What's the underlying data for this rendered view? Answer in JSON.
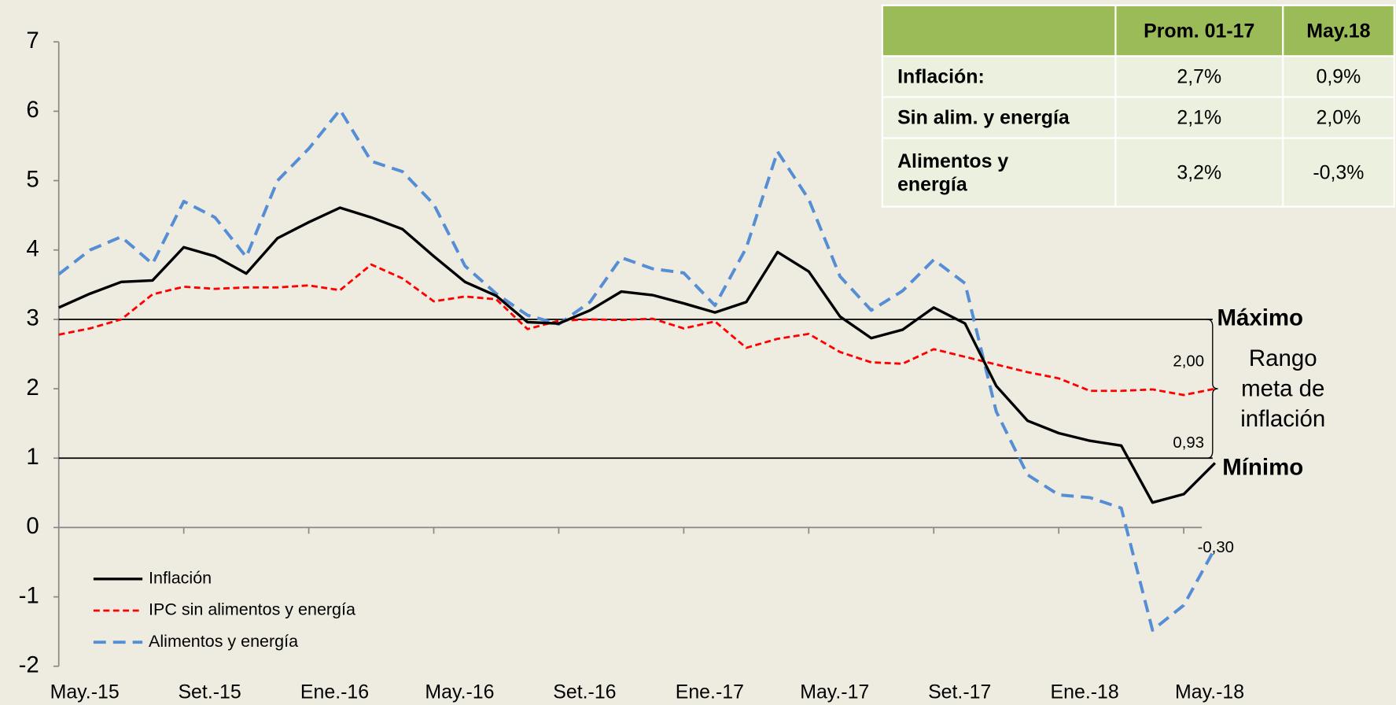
{
  "chart_data": {
    "type": "line",
    "categories": [
      null,
      "May.-15",
      null,
      null,
      null,
      "Set.-15",
      null,
      null,
      null,
      "Ene.-16",
      null,
      null,
      null,
      "May.-16",
      null,
      null,
      null,
      "Set.-16",
      null,
      null,
      null,
      "Ene.-17",
      null,
      null,
      null,
      "May.-17",
      null,
      null,
      null,
      "Set.-17",
      null,
      null,
      null,
      "Ene.-18",
      null,
      null,
      null,
      "May.-18"
    ],
    "series": [
      {
        "name": "Inflación",
        "color": "#000000",
        "dash": "solid",
        "end_label": "0,93",
        "values": [
          3.17,
          3.37,
          3.54,
          3.56,
          4.04,
          3.91,
          3.66,
          4.17,
          4.4,
          4.61,
          4.47,
          4.3,
          3.91,
          3.54,
          3.34,
          2.96,
          2.94,
          3.13,
          3.4,
          3.35,
          3.23,
          3.1,
          3.25,
          3.97,
          3.69,
          3.04,
          2.73,
          2.85,
          3.17,
          2.94,
          2.04,
          1.54,
          1.36,
          1.25,
          1.18,
          0.36,
          0.48,
          0.93
        ]
      },
      {
        "name": "IPC sin alimentos y energía",
        "color": "#ff0000",
        "dash": "short",
        "end_label": "2,00",
        "values": [
          2.78,
          2.87,
          3.0,
          3.36,
          3.47,
          3.44,
          3.46,
          3.46,
          3.49,
          3.42,
          3.79,
          3.59,
          3.26,
          3.33,
          3.29,
          2.86,
          2.98,
          3.0,
          2.99,
          3.01,
          2.87,
          2.97,
          2.59,
          2.72,
          2.79,
          2.53,
          2.38,
          2.36,
          2.57,
          2.46,
          2.35,
          2.24,
          2.15,
          1.97,
          1.97,
          1.99,
          1.91,
          2.0
        ]
      },
      {
        "name": "Alimentos y energía",
        "color": "#558ed5",
        "dash": "long",
        "end_label": "-0,30",
        "values": [
          3.65,
          4.0,
          4.19,
          3.8,
          4.7,
          4.47,
          3.9,
          5.0,
          5.46,
          6.02,
          5.28,
          5.13,
          4.66,
          3.77,
          3.37,
          3.06,
          2.93,
          3.25,
          3.89,
          3.73,
          3.67,
          3.2,
          4.03,
          5.42,
          4.73,
          3.62,
          3.13,
          3.41,
          3.86,
          3.52,
          1.67,
          0.76,
          0.47,
          0.43,
          0.28,
          -1.48,
          -1.12,
          -0.3
        ]
      }
    ],
    "ylim": [
      -2,
      7
    ],
    "yticks": [
      -2,
      -1,
      0,
      1,
      2,
      3,
      4,
      5,
      6,
      7
    ],
    "reference_lines": [
      {
        "value": 3,
        "label": "Máximo"
      },
      {
        "value": 1,
        "label": "Mínimo"
      }
    ],
    "range_label": [
      "Rango",
      "meta de",
      "inflación"
    ],
    "legend": "lower left"
  },
  "table": {
    "columns": [
      "Prom. 01-17",
      "May.18"
    ],
    "rows": [
      [
        "Inflación:",
        "2,7%",
        "0,9%"
      ],
      [
        "Sin alim. y energía",
        "2,1%",
        "2,0%"
      ],
      [
        "Alimentos y energía",
        "3,2%",
        "-0,3%"
      ]
    ]
  }
}
